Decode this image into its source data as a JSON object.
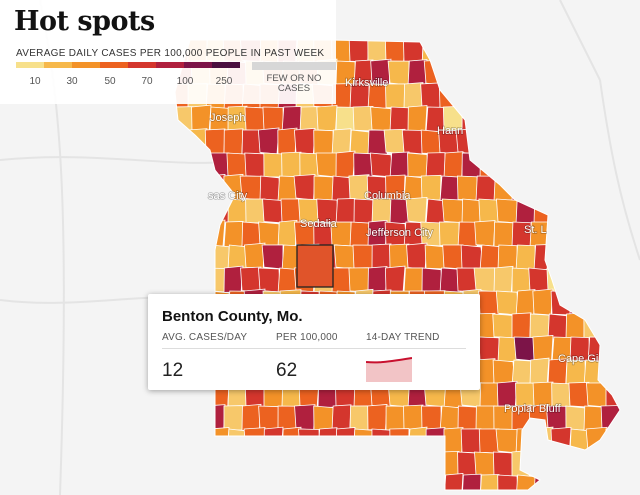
{
  "legend": {
    "title": "Hot spots",
    "subtitle": "AVERAGE DAILY CASES PER 100,000 PEOPLE IN PAST WEEK",
    "scale_colors": [
      "#f7e08b",
      "#f6b84b",
      "#f39228",
      "#ec6220",
      "#d4362d",
      "#b0203e",
      "#7c1448",
      "#4a0f3f"
    ],
    "ticks": [
      "10",
      "30",
      "50",
      "70",
      "100",
      "250"
    ],
    "few_label_1": "FEW OR NO",
    "few_label_2": "CASES"
  },
  "cities": {
    "kirksville": "Kirksville",
    "hannibal": "Hann",
    "st_joseph": "Joseph",
    "kansas_city": "sas City",
    "columbia": "Columbia",
    "sedalia": "Sedalia",
    "jefferson_city": "Jefferson City",
    "st_louis": "St. L",
    "cape_girardeau": "Cape Gi",
    "poplar_bluff": "Poplar Bluff"
  },
  "tooltip": {
    "county": "Benton County, Mo.",
    "col1_header": "AVG. CASES/DAY",
    "col2_header": "PER 100,000",
    "col3_header": "14-DAY TREND",
    "cases_per_day": "12",
    "per_100k": "62",
    "trend_color": "#c8102e",
    "trend_fill": "#f2c4c6"
  }
}
